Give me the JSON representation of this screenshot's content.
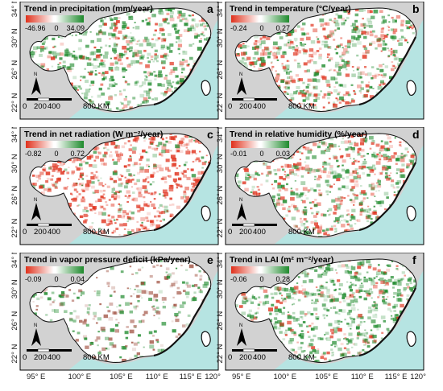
{
  "colors": {
    "sea": "#b6e4e2",
    "outside_land": "#d2d2d2",
    "region_fill": "#ffffff",
    "negative": "#e0311c",
    "positive": "#1e8a2c",
    "boundary": "#111111"
  },
  "y_ticks": [
    "34° N",
    "30° N",
    "26° N",
    "22° N"
  ],
  "x_ticks": [
    "95° E",
    "100° E",
    "105° E",
    "110° E",
    "115° E",
    "120° E"
  ],
  "scale_bar": {
    "labels": [
      "0",
      "200",
      "400",
      "800 KM"
    ]
  },
  "north_arrow": {
    "label": "N"
  },
  "panels": [
    {
      "letter": "a",
      "title": "Trend in precipitation (mm/year)",
      "min": "-46.96",
      "mid": "0",
      "max": "34.09",
      "tone": "green"
    },
    {
      "letter": "b",
      "title": "Trend in temperature (°C/year)",
      "min": "-0.24",
      "mid": "0",
      "max": "0.27",
      "tone": "mixed"
    },
    {
      "letter": "c",
      "title": "Trend in net radiation (W m⁻²/year)",
      "min": "-0.82",
      "mid": "0",
      "max": "0.72",
      "tone": "red"
    },
    {
      "letter": "d",
      "title": "Trend in relative humidity (%/year)",
      "min": "-0.01",
      "mid": "0",
      "max": "0.03",
      "tone": "mixed"
    },
    {
      "letter": "e",
      "title": "Trend in vapor pressure deficit (kPa/year)",
      "min": "-0.09",
      "mid": "0",
      "max": "0.04",
      "tone": "sparse"
    },
    {
      "letter": "f",
      "title": "Trend in LAI (m² m⁻²/year)",
      "min": "-0.06",
      "mid": "0",
      "max": "0.28",
      "tone": "green"
    }
  ]
}
